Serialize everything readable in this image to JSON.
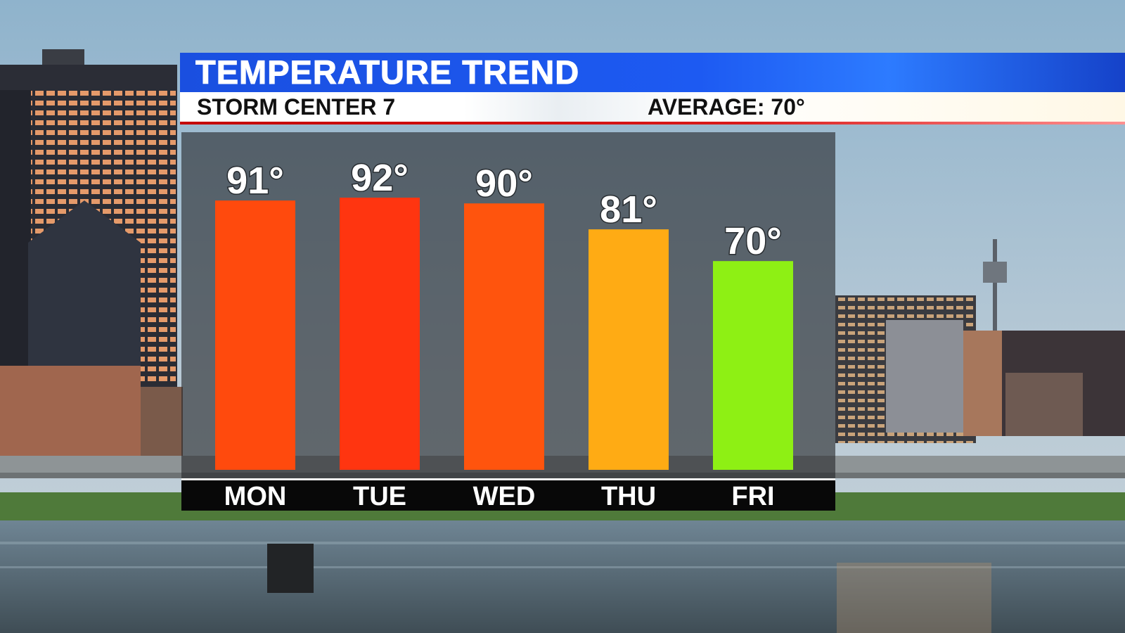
{
  "header": {
    "title": "TEMPERATURE TREND",
    "station": "STORM CENTER 7",
    "average": "AVERAGE: 70°"
  },
  "chart_data": {
    "type": "bar",
    "categories": [
      "MON",
      "TUE",
      "WED",
      "THU",
      "FRI"
    ],
    "values": [
      91,
      92,
      90,
      81,
      70
    ],
    "value_labels": [
      "91°",
      "92°",
      "90°",
      "81°",
      "70°"
    ],
    "bar_colors": [
      "#ff4a0d",
      "#ff3510",
      "#ff540d",
      "#ffab14",
      "#8ef014"
    ],
    "title": "TEMPERATURE TREND",
    "xlabel": "",
    "ylabel": "",
    "grid": false,
    "legend": "none"
  },
  "colors": {
    "banner_blue": "#1d5af2",
    "accent_red": "#c40000",
    "axis_strip": "#080808"
  }
}
